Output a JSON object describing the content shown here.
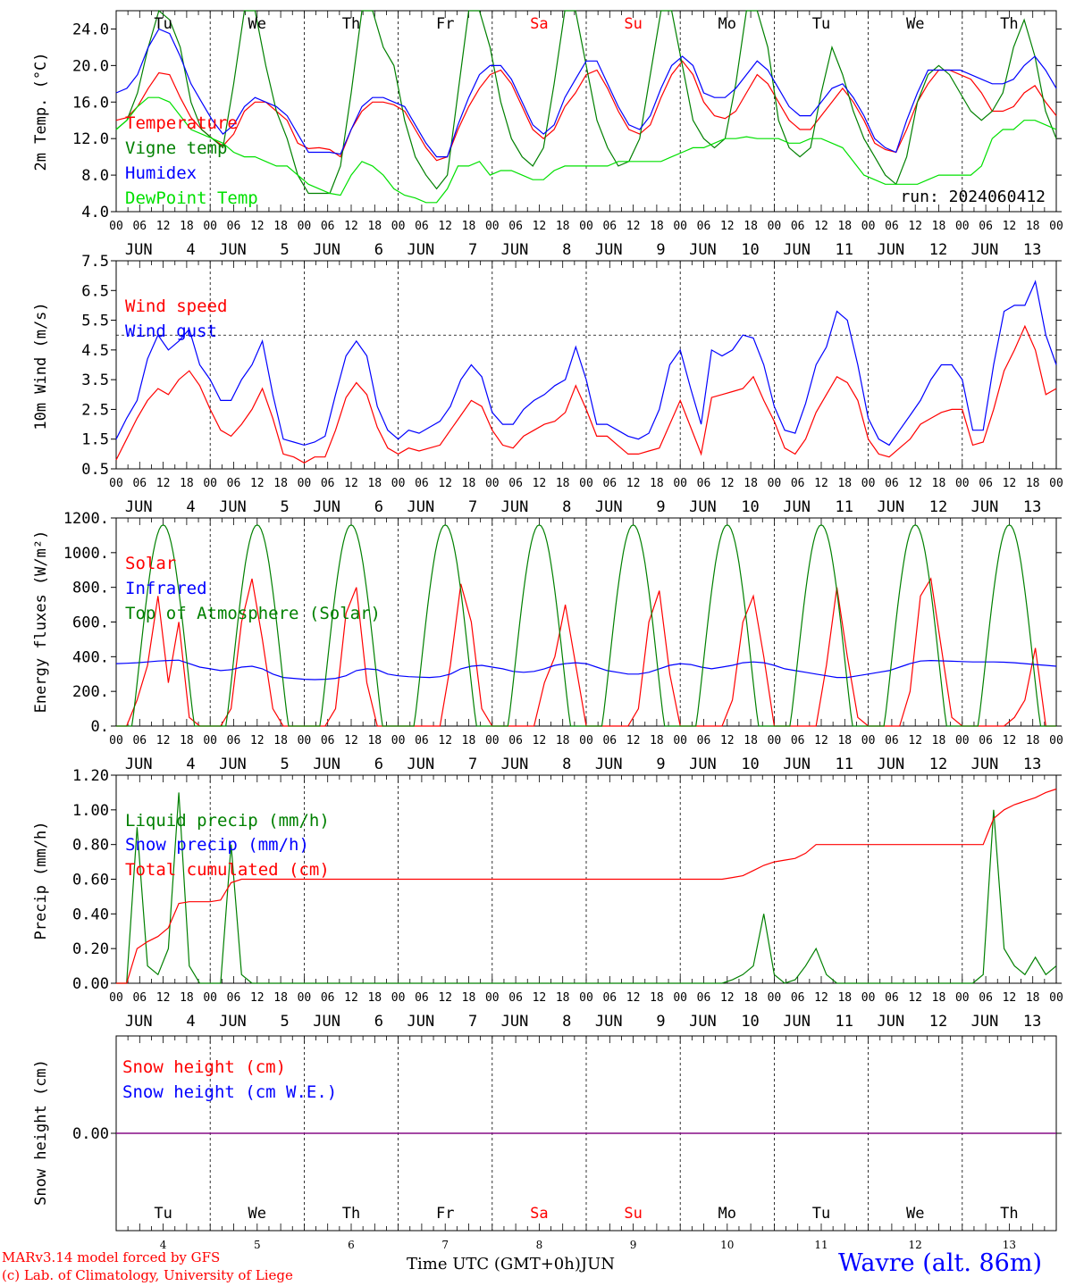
{
  "chart_data": [
    {
      "type": "line",
      "ylabel": "2m Temp. (°C)",
      "yticks": [
        "24.0",
        "20.0",
        "16.0",
        "12.0",
        "8.0",
        "4.0"
      ],
      "ylim": [
        4,
        26
      ],
      "legend": [
        "Temperature",
        "Vigne temp",
        "Humidex",
        "DewPoint Temp"
      ],
      "annotation": "run: 2024060412",
      "series": [
        {
          "name": "Temperature",
          "color": "#ff0000",
          "values": [
            14,
            14.3,
            15.5,
            17.5,
            19.2,
            19,
            16.5,
            14.3,
            13,
            12,
            11.2,
            12.5,
            15,
            16,
            16,
            15,
            14,
            11.5,
            10.9,
            11,
            10.8,
            10,
            13,
            15,
            16,
            16,
            15.7,
            15,
            13,
            11,
            9.6,
            10,
            13,
            15.5,
            17.5,
            19,
            19.5,
            18,
            15.5,
            13,
            12,
            13,
            15.5,
            17,
            19,
            19.5,
            17.5,
            15,
            13,
            12.5,
            13.5,
            16.5,
            19,
            20.5,
            19,
            16,
            14.5,
            14.2,
            15,
            17,
            19,
            18,
            16,
            14,
            13,
            13,
            14.5,
            16,
            17.5,
            16,
            14,
            11.5,
            10.8,
            10.5,
            13,
            16,
            18,
            19.5,
            19.5,
            19,
            18.5,
            17,
            15,
            15,
            15.5,
            17,
            17.8,
            16,
            14.5
          ]
        },
        {
          "name": "Vigne temp",
          "color": "#008000",
          "values": [
            13,
            14,
            17,
            22,
            26,
            25,
            22,
            16,
            13,
            12,
            11,
            18,
            26,
            26,
            20,
            15,
            12,
            8,
            6,
            6,
            6,
            9,
            17,
            26,
            26,
            22,
            20,
            14,
            10,
            8,
            6.5,
            8,
            17,
            26,
            26,
            22,
            16,
            12,
            10,
            9,
            11,
            18,
            26,
            26,
            20,
            14,
            11,
            9,
            9.5,
            12,
            19,
            26,
            26,
            20,
            14,
            12,
            11,
            12,
            18,
            26,
            26,
            22,
            14,
            11,
            10,
            11,
            17,
            22,
            19,
            15,
            12,
            10,
            8,
            7,
            10,
            16,
            19,
            20,
            19,
            17,
            15,
            14,
            15,
            17,
            22,
            25,
            21,
            15,
            12
          ]
        },
        {
          "name": "Humidex",
          "color": "#0000ff",
          "values": [
            17,
            17.5,
            19,
            22,
            24,
            23.5,
            21,
            18,
            16,
            14,
            12.5,
            13.5,
            15.5,
            16.5,
            16,
            15.5,
            14.5,
            12.5,
            10.5,
            10.5,
            10.5,
            10.3,
            13,
            15.5,
            16.5,
            16.5,
            16,
            15.5,
            13.5,
            11.5,
            10,
            10,
            13.5,
            16.5,
            19,
            20,
            20,
            18.5,
            16,
            13.5,
            12.5,
            13.5,
            16.5,
            18.5,
            20.5,
            20.5,
            18,
            15.5,
            13.5,
            13,
            14.5,
            17.5,
            20,
            21,
            20,
            17,
            16.5,
            16.5,
            17.5,
            19,
            20.5,
            19.5,
            17.5,
            15.5,
            14.5,
            14.5,
            16,
            17.5,
            18,
            16.5,
            14.5,
            12,
            11,
            10.5,
            14,
            17,
            19.5,
            19.5,
            19.5,
            19.5,
            19,
            18.5,
            18,
            18,
            18.5,
            20,
            21,
            19.5,
            17.5
          ]
        },
        {
          "name": "DewPoint Temp",
          "color": "#00e000",
          "values": [
            13,
            14,
            15.5,
            16.5,
            16.5,
            16,
            14.5,
            13,
            12.5,
            12,
            11.5,
            10.5,
            10,
            10,
            9.5,
            9,
            9,
            8,
            7,
            6.5,
            6,
            5.8,
            8,
            9.5,
            9,
            8,
            6.5,
            5.8,
            5.5,
            5,
            5,
            6.5,
            9,
            9,
            9.5,
            8,
            8.5,
            8.5,
            8,
            7.5,
            7.5,
            8.5,
            9,
            9,
            9,
            9,
            9,
            9.5,
            9.5,
            9.5,
            9.5,
            9.5,
            10,
            10.5,
            11,
            11,
            11.5,
            12,
            12,
            12.2,
            12,
            12,
            12,
            11.5,
            11.5,
            12,
            12,
            11.5,
            11,
            9.5,
            8,
            7.5,
            7,
            7,
            7,
            7,
            7.5,
            8,
            8,
            8,
            8,
            9,
            12,
            13,
            13,
            14,
            14,
            13.5,
            13
          ]
        }
      ]
    },
    {
      "type": "line",
      "ylabel": "10m Wind (m/s)",
      "yticks": [
        "7.5",
        "6.5",
        "5.5",
        "4.5",
        "3.5",
        "2.5",
        "1.5",
        "0.5"
      ],
      "ylim": [
        0.5,
        7.5
      ],
      "legend": [
        "Wind speed",
        "Wind gust"
      ],
      "series": [
        {
          "name": "Wind speed",
          "color": "#ff0000",
          "values": [
            0.8,
            1.5,
            2.2,
            2.8,
            3.2,
            3,
            3.5,
            3.8,
            3.3,
            2.5,
            1.8,
            1.6,
            2,
            2.5,
            3.2,
            2.2,
            1,
            0.9,
            0.7,
            0.9,
            0.9,
            1.8,
            2.9,
            3.4,
            3,
            1.9,
            1.2,
            1,
            1.2,
            1.1,
            1.2,
            1.3,
            1.8,
            2.3,
            2.8,
            2.6,
            1.8,
            1.3,
            1.2,
            1.6,
            1.8,
            2,
            2.1,
            2.4,
            3.3,
            2.5,
            1.6,
            1.6,
            1.3,
            1,
            1,
            1.1,
            1.2,
            2,
            2.8,
            1.9,
            1,
            2.9,
            3,
            3.1,
            3.2,
            3.6,
            2.8,
            2.1,
            1.2,
            1,
            1.5,
            2.4,
            3,
            3.6,
            3.4,
            2.8,
            1.5,
            1,
            0.9,
            1.2,
            1.5,
            2,
            2.2,
            2.4,
            2.5,
            2.5,
            1.3,
            1.4,
            2.5,
            3.8,
            4.5,
            5.3,
            4.5,
            3,
            3.2
          ]
        },
        {
          "name": "Wind gust",
          "color": "#0000ff",
          "values": [
            1.5,
            2.2,
            2.8,
            4.2,
            5,
            4.5,
            4.8,
            5.2,
            4,
            3.5,
            2.8,
            2.8,
            3.5,
            4,
            4.8,
            3,
            1.5,
            1.4,
            1.3,
            1.4,
            1.6,
            3,
            4.3,
            4.8,
            4.3,
            2.6,
            1.8,
            1.5,
            1.8,
            1.7,
            1.9,
            2.1,
            2.6,
            3.5,
            4,
            3.6,
            2.4,
            2,
            2,
            2.5,
            2.8,
            3,
            3.3,
            3.5,
            4.6,
            3.5,
            2,
            2,
            1.8,
            1.6,
            1.5,
            1.7,
            2.5,
            4,
            4.5,
            3.2,
            2,
            4.5,
            4.3,
            4.5,
            5,
            4.9,
            4,
            2.6,
            1.8,
            1.7,
            2.7,
            4,
            4.6,
            5.8,
            5.5,
            4,
            2.2,
            1.5,
            1.3,
            1.8,
            2.3,
            2.8,
            3.5,
            4,
            4,
            3.5,
            1.8,
            1.8,
            4,
            5.8,
            6,
            6,
            6.8,
            5,
            4
          ]
        }
      ]
    },
    {
      "type": "line",
      "ylabel": "Energy fluxes (W/m²)",
      "yticks": [
        "1200.",
        "1000.",
        "800.",
        "600.",
        "400.",
        "200.",
        "0."
      ],
      "ylim": [
        0,
        1200
      ],
      "legend": [
        "Solar",
        "Infrared",
        "Top of Atmosphere (Solar)"
      ],
      "series": [
        {
          "name": "Solar",
          "color": "#ff0000",
          "values": [
            0,
            0,
            150,
            350,
            750,
            250,
            600,
            50,
            0,
            0,
            0,
            100,
            600,
            850,
            500,
            100,
            0,
            0,
            0,
            0,
            0,
            100,
            650,
            800,
            250,
            0,
            0,
            0,
            0,
            0,
            0,
            0,
            350,
            820,
            600,
            100,
            0,
            0,
            0,
            0,
            0,
            250,
            400,
            700,
            350,
            0,
            0,
            0,
            0,
            0,
            100,
            600,
            780,
            300,
            0,
            0,
            0,
            0,
            0,
            150,
            600,
            750,
            400,
            0,
            0,
            0,
            0,
            0,
            350,
            800,
            400,
            50,
            0,
            0,
            0,
            0,
            200,
            750,
            850,
            450,
            50,
            0,
            0,
            0,
            0,
            0,
            50,
            150,
            450,
            0,
            0
          ]
        },
        {
          "name": "Infrared",
          "color": "#0000ff",
          "values": [
            360,
            362,
            365,
            370,
            375,
            378,
            380,
            360,
            340,
            330,
            320,
            325,
            340,
            345,
            330,
            300,
            280,
            275,
            270,
            268,
            270,
            275,
            290,
            320,
            330,
            325,
            300,
            290,
            285,
            282,
            280,
            285,
            300,
            330,
            345,
            350,
            340,
            330,
            315,
            310,
            315,
            330,
            350,
            360,
            365,
            360,
            340,
            320,
            310,
            300,
            300,
            310,
            330,
            350,
            360,
            355,
            340,
            330,
            340,
            350,
            365,
            370,
            365,
            350,
            330,
            320,
            310,
            300,
            290,
            280,
            280,
            290,
            300,
            310,
            320,
            340,
            360,
            375,
            378,
            376,
            374,
            372,
            370,
            370,
            370,
            368,
            365,
            360,
            355,
            350,
            345
          ]
        },
        {
          "name": "Top of Atmosphere (Solar)",
          "color": "#008000",
          "values": []
        }
      ]
    },
    {
      "type": "line",
      "ylabel": "Precip (mm/h)",
      "yticks": [
        "1.20",
        "1.00",
        "0.80",
        "0.60",
        "0.40",
        "0.20",
        "0.00"
      ],
      "ylim": [
        0,
        1.2
      ],
      "legend": [
        "Liquid precip (mm/h)",
        "Snow precip (mm/h)",
        "Total cumulated (cm)"
      ],
      "series": [
        {
          "name": "Liquid precip (mm/h)",
          "color": "#008000",
          "values": [
            0,
            0,
            0.9,
            0.1,
            0.05,
            0.2,
            1.1,
            0.1,
            0,
            0,
            0,
            0.8,
            0.05,
            0,
            0,
            0,
            0,
            0,
            0,
            0,
            0,
            0,
            0,
            0,
            0,
            0,
            0,
            0,
            0,
            0,
            0,
            0,
            0,
            0,
            0,
            0,
            0,
            0,
            0,
            0,
            0,
            0,
            0,
            0,
            0,
            0,
            0,
            0,
            0,
            0,
            0,
            0,
            0,
            0,
            0,
            0,
            0,
            0,
            0,
            0.02,
            0.05,
            0.1,
            0.4,
            0.05,
            0,
            0.02,
            0.1,
            0.2,
            0.05,
            0,
            0,
            0,
            0,
            0,
            0,
            0,
            0,
            0,
            0,
            0,
            0,
            0,
            0,
            0.05,
            1.0,
            0.2,
            0.1,
            0.05,
            0.15,
            0.05,
            0.1
          ]
        },
        {
          "name": "Snow precip (mm/h)",
          "color": "#0000ff",
          "values": []
        },
        {
          "name": "Total cumulated (cm)",
          "color": "#ff0000",
          "values": [
            0,
            0,
            0.2,
            0.24,
            0.27,
            0.32,
            0.46,
            0.47,
            0.47,
            0.47,
            0.48,
            0.58,
            0.6,
            0.6,
            0.6,
            0.6,
            0.6,
            0.6,
            0.6,
            0.6,
            0.6,
            0.6,
            0.6,
            0.6,
            0.6,
            0.6,
            0.6,
            0.6,
            0.6,
            0.6,
            0.6,
            0.6,
            0.6,
            0.6,
            0.6,
            0.6,
            0.6,
            0.6,
            0.6,
            0.6,
            0.6,
            0.6,
            0.6,
            0.6,
            0.6,
            0.6,
            0.6,
            0.6,
            0.6,
            0.6,
            0.6,
            0.6,
            0.6,
            0.6,
            0.6,
            0.6,
            0.6,
            0.6,
            0.6,
            0.61,
            0.62,
            0.65,
            0.68,
            0.7,
            0.71,
            0.72,
            0.75,
            0.8,
            0.8,
            0.8,
            0.8,
            0.8,
            0.8,
            0.8,
            0.8,
            0.8,
            0.8,
            0.8,
            0.8,
            0.8,
            0.8,
            0.8,
            0.8,
            0.8,
            0.95,
            1.0,
            1.03,
            1.05,
            1.07,
            1.1,
            1.12
          ]
        }
      ]
    },
    {
      "type": "line",
      "ylabel": "Snow height (cm)",
      "yticks": [
        "0.00"
      ],
      "legend": [
        "Snow height (cm)",
        "Snow height (cm W.E.)"
      ],
      "series": [
        {
          "name": "Snow height (cm)",
          "color": "#ff0000",
          "values": [
            0,
            0
          ]
        },
        {
          "name": "Snow height (cm W.E.)",
          "color": "#0000ff",
          "values": [
            0,
            0
          ]
        }
      ]
    }
  ],
  "days": {
    "weekdays": [
      "Tu",
      "We",
      "Th",
      "Fr",
      "Sa",
      "Su",
      "Mo",
      "Tu",
      "We",
      "Th"
    ],
    "weekday_colors": [
      "#000000",
      "#000000",
      "#000000",
      "#000000",
      "#ff0000",
      "#ff0000",
      "#000000",
      "#000000",
      "#000000",
      "#000000"
    ],
    "hour_ticks": [
      "00",
      "06",
      "12",
      "18"
    ],
    "month": "JUN",
    "numbers": [
      "4",
      "5",
      "6",
      "7",
      "8",
      "9",
      "10",
      "11",
      "12",
      "13"
    ],
    "last_hour": "00"
  },
  "footer": {
    "model": "MARv3.14 model forced by GFS",
    "copyright": "(c) Lab. of Climatology, University of Liege",
    "xlabel": "Time UTC (GMT+0h)",
    "month": "JUN",
    "location": "Wavre (alt. 86m)"
  },
  "colors": {
    "red": "#ff0000",
    "green": "#008000",
    "blue": "#0000ff",
    "lightgreen": "#00e000",
    "purple": "#800080"
  }
}
